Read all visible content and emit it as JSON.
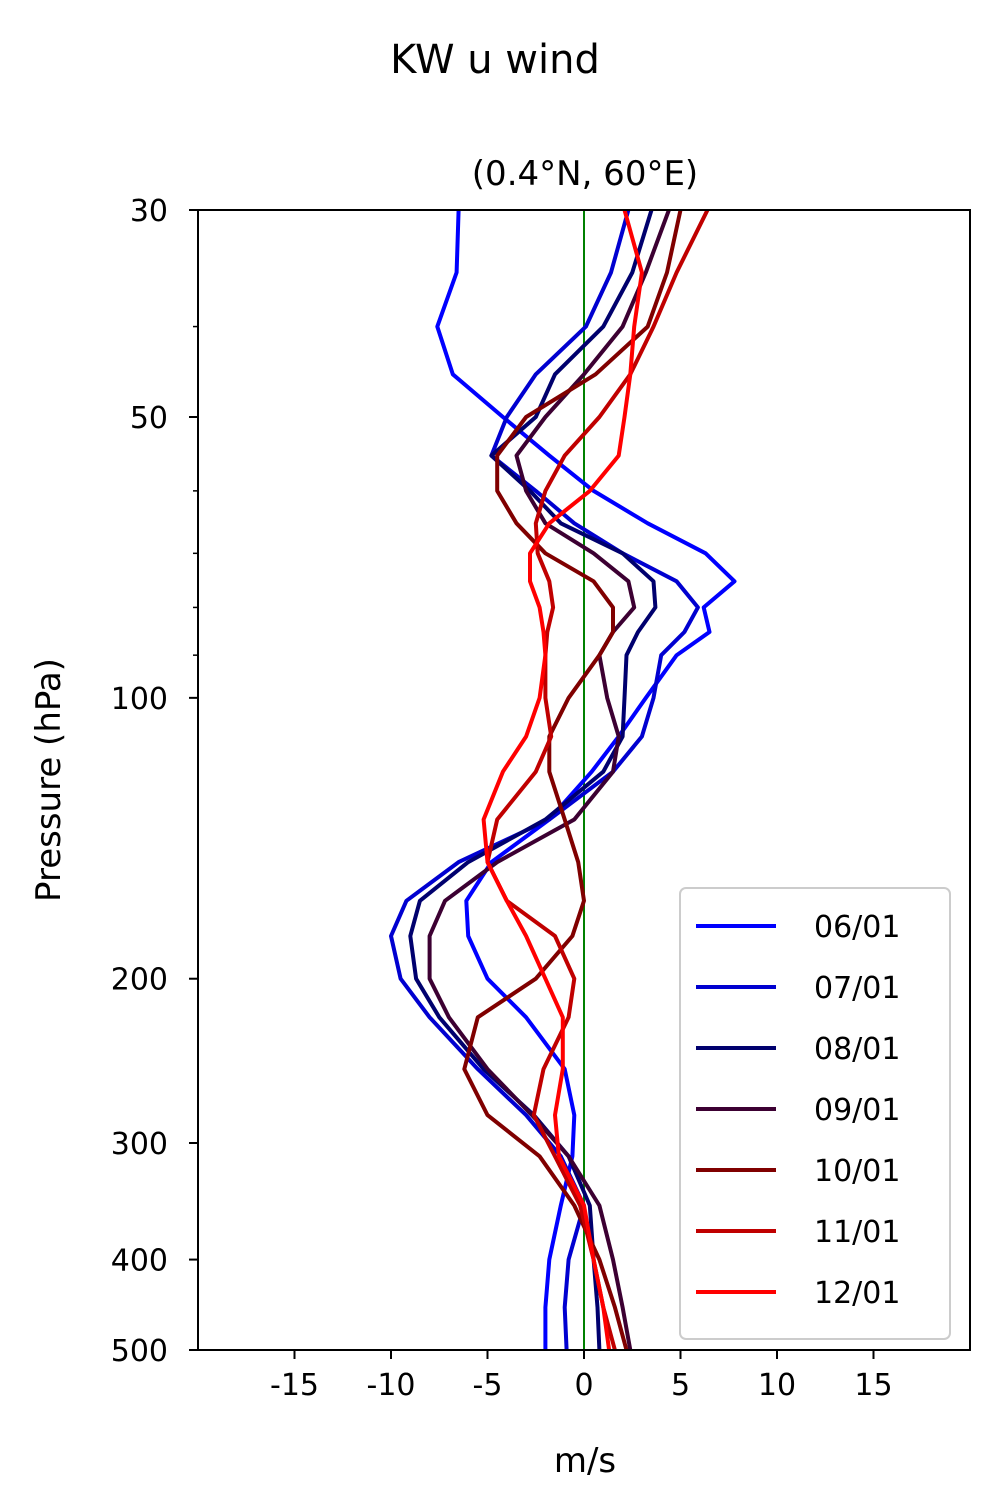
{
  "chart_data": {
    "type": "line",
    "title": "KW u wind",
    "subtitle": "(0.4°N, 60°E)",
    "xlabel": "m/s",
    "ylabel": "Pressure (hPa)",
    "xlim": [
      -20,
      20
    ],
    "ylim": [
      500,
      30
    ],
    "y_scale": "log",
    "x_ticks": [
      -15,
      -10,
      -5,
      0,
      5,
      10,
      15
    ],
    "y_ticks": [
      30,
      50,
      100,
      200,
      300,
      400,
      500
    ],
    "y_minor_ticks": [
      40,
      60,
      70,
      80,
      90
    ],
    "zero_line_color": "#008000",
    "legend_position": "lower right",
    "grid": false,
    "pressure_levels": [
      30,
      35,
      40,
      45,
      50,
      55,
      60,
      65,
      70,
      75,
      80,
      85,
      90,
      100,
      110,
      120,
      135,
      150,
      165,
      180,
      200,
      220,
      250,
      280,
      310,
      350,
      400,
      450,
      500
    ],
    "series": [
      {
        "name": "06/01",
        "color": "#0000ff",
        "values": [
          -6.5,
          -6.6,
          -7.6,
          -6.8,
          -4.2,
          -1.8,
          0.5,
          3.3,
          6.3,
          7.8,
          6.2,
          6.5,
          4.8,
          3.2,
          1.8,
          0.4,
          -1.8,
          -4.8,
          -6.1,
          -6.0,
          -5.0,
          -3.0,
          -1.0,
          -0.5,
          -0.6,
          -1.2,
          -1.8,
          -2.0,
          -2.0
        ]
      },
      {
        "name": "07/01",
        "color": "#0000d0",
        "values": [
          2.3,
          1.4,
          0.1,
          -2.5,
          -4.0,
          -4.8,
          -2.5,
          -0.5,
          2.0,
          4.8,
          5.9,
          5.2,
          4.0,
          3.6,
          3.0,
          1.5,
          -1.8,
          -6.5,
          -9.2,
          -10.0,
          -9.5,
          -8.0,
          -5.5,
          -3.0,
          -1.2,
          0.0,
          -0.8,
          -1.0,
          -0.9
        ]
      },
      {
        "name": "08/01",
        "color": "#00006e",
        "values": [
          3.5,
          2.5,
          1.0,
          -1.5,
          -2.5,
          -4.8,
          -2.8,
          -1.2,
          2.0,
          3.6,
          3.7,
          2.8,
          2.2,
          2.1,
          2.0,
          1.0,
          -2.0,
          -6.0,
          -8.5,
          -9.0,
          -8.7,
          -7.5,
          -5.2,
          -2.6,
          -0.8,
          0.3,
          0.5,
          0.7,
          0.8
        ]
      },
      {
        "name": "09/01",
        "color": "#3c0032",
        "values": [
          4.4,
          3.2,
          2.0,
          0.0,
          -2.0,
          -3.5,
          -3.0,
          -2.0,
          0.5,
          2.3,
          2.6,
          1.5,
          0.8,
          1.2,
          1.8,
          1.5,
          -0.5,
          -4.5,
          -7.2,
          -8.0,
          -8.0,
          -7.0,
          -5.0,
          -2.7,
          -0.8,
          0.8,
          1.5,
          2.0,
          2.4
        ]
      },
      {
        "name": "10/01",
        "color": "#800000",
        "values": [
          5.0,
          4.3,
          3.3,
          0.6,
          -3.0,
          -4.5,
          -4.5,
          -3.5,
          -2.0,
          0.5,
          1.5,
          1.5,
          0.8,
          -0.8,
          -1.8,
          -1.8,
          -1.0,
          -0.3,
          0.0,
          -0.6,
          -2.5,
          -5.5,
          -6.2,
          -5.0,
          -2.3,
          -0.5,
          0.8,
          1.6,
          2.2
        ]
      },
      {
        "name": "11/01",
        "color": "#c00000",
        "values": [
          6.4,
          4.8,
          3.6,
          2.4,
          0.8,
          -1.0,
          -2.0,
          -2.5,
          -2.4,
          -1.8,
          -1.6,
          -1.9,
          -2.0,
          -2.0,
          -1.7,
          -2.5,
          -4.5,
          -5.0,
          -4.0,
          -1.5,
          -0.5,
          -0.8,
          -2.1,
          -2.6,
          -1.5,
          -0.2,
          0.5,
          1.0,
          1.6
        ]
      },
      {
        "name": "12/01",
        "color": "#ff0000",
        "values": [
          2.1,
          3.0,
          2.6,
          2.4,
          2.1,
          1.8,
          0.3,
          -1.8,
          -2.8,
          -2.8,
          -2.3,
          -2.1,
          -2.0,
          -2.3,
          -3.0,
          -4.2,
          -5.2,
          -5.0,
          -4.0,
          -3.0,
          -2.0,
          -1.1,
          -1.1,
          -1.5,
          -1.3,
          0.0,
          0.5,
          1.0,
          1.3
        ]
      }
    ]
  }
}
